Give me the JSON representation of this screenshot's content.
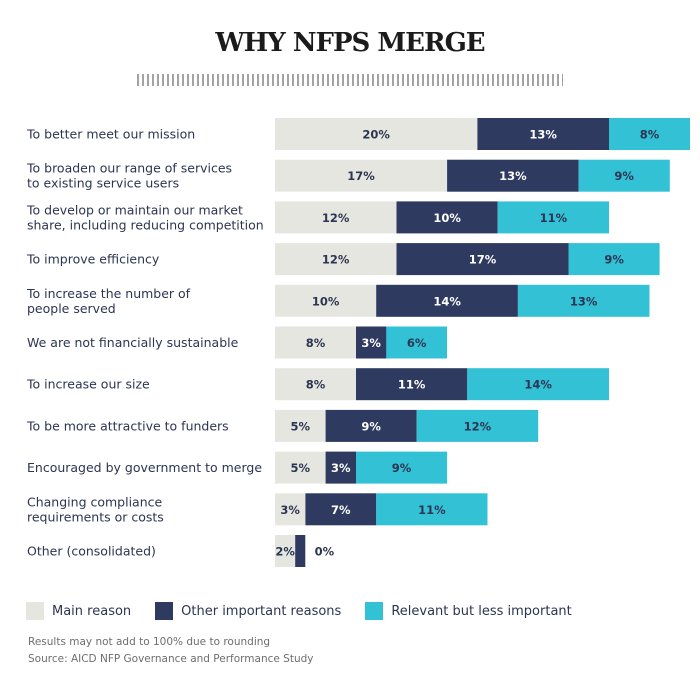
{
  "chart_data": {
    "type": "bar",
    "orientation": "horizontal",
    "stacked": true,
    "title": "WHY NFPS MERGE",
    "categories": [
      [
        "To better meet our mission"
      ],
      [
        "To broaden our range of services",
        "to existing service users"
      ],
      [
        "To develop or maintain our market",
        "share, including reducing competition"
      ],
      [
        "To improve efficiency"
      ],
      [
        "To increase the number of",
        "people served"
      ],
      [
        "We are not financially sustainable"
      ],
      [
        "To increase our size"
      ],
      [
        "To be more attractive to funders"
      ],
      [
        "Encouraged by government to merge"
      ],
      [
        "Changing compliance",
        "requirements or costs"
      ],
      [
        "Other (consolidated)"
      ]
    ],
    "series": [
      {
        "name": "Main reason",
        "color": "#e6e6e1",
        "label_color": "#2c3551",
        "values": [
          20,
          17,
          12,
          12,
          10,
          8,
          8,
          5,
          5,
          3,
          2
        ]
      },
      {
        "name": "Other important reasons",
        "color": "#2e3a5f",
        "label_color": "#ffffff",
        "values": [
          13,
          13,
          10,
          17,
          14,
          3,
          11,
          9,
          3,
          7,
          1
        ]
      },
      {
        "name": "Relevant but less important",
        "color": "#33c1d6",
        "label_color": "#2c3551",
        "values": [
          8,
          9,
          11,
          9,
          13,
          6,
          14,
          12,
          9,
          11,
          0
        ]
      }
    ],
    "value_labels": [
      [
        "20%",
        "13%",
        "8%"
      ],
      [
        "17%",
        "13%",
        "9%"
      ],
      [
        "12%",
        "10%",
        "11%"
      ],
      [
        "12%",
        "17%",
        "9%"
      ],
      [
        "10%",
        "14%",
        "13%"
      ],
      [
        "8%",
        "3%",
        "6%"
      ],
      [
        "8%",
        "11%",
        "14%"
      ],
      [
        "5%",
        "9%",
        "12%"
      ],
      [
        "5%",
        "3%",
        "9%"
      ],
      [
        "3%",
        "7%",
        "11%"
      ],
      [
        "2%",
        "",
        "0%"
      ]
    ],
    "xlim": [
      0,
      41
    ],
    "grid": false,
    "legend": "bottom",
    "footnotes": [
      "Results may not add to 100% due to rounding",
      "Source: AICD NFP Governance and Performance Study"
    ]
  }
}
